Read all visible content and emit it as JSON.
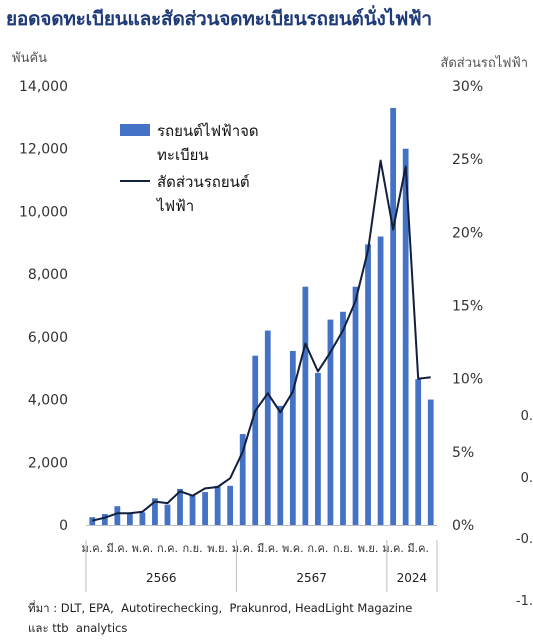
{
  "title": "ยอดจดทะเบียนและสัดส่วนจดทะเบียนรถยนต์นั่งไฟฟ้า",
  "chart_data": {
    "type": "bar+line",
    "y_left_label": "พันคัน",
    "y_right_label": "สัดส่วนรถไฟฟ้า",
    "y_left_ticks": [
      "14,000",
      "12,000",
      "10,000",
      "8,000",
      "6,000",
      "4,000",
      "2,000",
      "0"
    ],
    "y_right_ticks": [
      "30%",
      "25%",
      "20%",
      "15%",
      "10%",
      "5%",
      "0%"
    ],
    "ylim_left": [
      0,
      14000
    ],
    "ylim_right": [
      0,
      30
    ],
    "x_tick_labels": [
      {
        "label": "ม.ค.",
        "index": 0
      },
      {
        "label": "มี.ค.",
        "index": 2
      },
      {
        "label": "พ.ค.",
        "index": 4
      },
      {
        "label": "ก.ค.",
        "index": 6
      },
      {
        "label": "ก.ย.",
        "index": 8
      },
      {
        "label": "พ.ย.",
        "index": 10
      },
      {
        "label": "ม.ค.",
        "index": 12
      },
      {
        "label": "มี.ค.",
        "index": 14
      },
      {
        "label": "พ.ค.",
        "index": 16
      },
      {
        "label": "ก.ค.",
        "index": 18
      },
      {
        "label": "ก.ย.",
        "index": 20
      },
      {
        "label": "พ.ย.",
        "index": 22
      },
      {
        "label": "ม.ค.",
        "index": 24
      },
      {
        "label": "มี.ค.",
        "index": 26
      }
    ],
    "year_groups": [
      {
        "label": "2566",
        "start": 0,
        "end": 11
      },
      {
        "label": "2567",
        "start": 12,
        "end": 23
      },
      {
        "label": "2024",
        "start": 24,
        "end": 27
      }
    ],
    "series": [
      {
        "name": "รถยนต์ไฟฟ้าจดทะเบียน",
        "type": "bar",
        "axis": "left",
        "color": "#4472c4",
        "values": [
          250,
          350,
          600,
          400,
          400,
          850,
          650,
          1150,
          950,
          1050,
          1250,
          1250,
          2900,
          5400,
          6200,
          3800,
          5550,
          7600,
          4850,
          6550,
          6800,
          7600,
          8950,
          9200,
          13300,
          12000,
          4650,
          4000
        ]
      },
      {
        "name": "สัดส่วนรถยนต์ไฟฟ้า",
        "type": "line",
        "axis": "right",
        "color": "#12203d",
        "values": [
          0.3,
          0.5,
          0.8,
          0.8,
          0.9,
          1.6,
          1.5,
          2.3,
          2.0,
          2.5,
          2.6,
          3.2,
          5.0,
          7.8,
          9.0,
          7.7,
          9.1,
          12.4,
          10.5,
          11.8,
          13.3,
          15.3,
          18.8,
          24.9,
          20.2,
          24.5,
          10.0,
          10.1
        ]
      }
    ],
    "legend": {
      "position": "top-left",
      "lines": [
        [
          "รถยนต์ไฟฟ้าจด",
          "ทะเบียน"
        ],
        [
          "สัดส่วนรถยนต์",
          "ไฟฟ้า"
        ]
      ]
    },
    "clipped_right_labels": [
      "0.",
      "0.",
      "-0.",
      "-1."
    ]
  },
  "source_text": "ที่มา : DLT, EPA,  Autotirechecking,  Prakunrod, HeadLight Magazine",
  "source_text_2": "และ ttb  analytics"
}
